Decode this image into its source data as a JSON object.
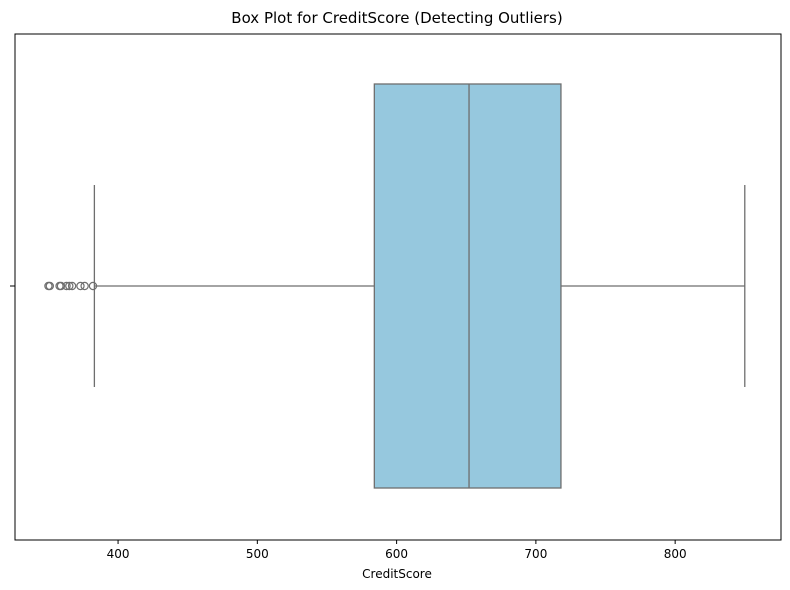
{
  "chart_data": {
    "type": "boxplot",
    "title": "Box Plot for CreditScore (Detecting Outliers)",
    "xlabel": "CreditScore",
    "ylabel": "",
    "orientation": "horizontal",
    "xlim": [
      326,
      876
    ],
    "x_ticks": [
      400,
      500,
      600,
      700,
      800
    ],
    "x_tick_labels": [
      "400",
      "500",
      "600",
      "700",
      "800"
    ],
    "grid": false,
    "series": [
      {
        "whisker_low": 383,
        "q1": 584,
        "median": 652,
        "q3": 718,
        "whisker_high": 850,
        "outliers": [
          350,
          351,
          358,
          359,
          363,
          365,
          367,
          373,
          376,
          382
        ]
      }
    ],
    "colors": {
      "box_fill": "#96C8DE",
      "box_edge": "#6E6E6E",
      "axis": "#000000"
    }
  }
}
